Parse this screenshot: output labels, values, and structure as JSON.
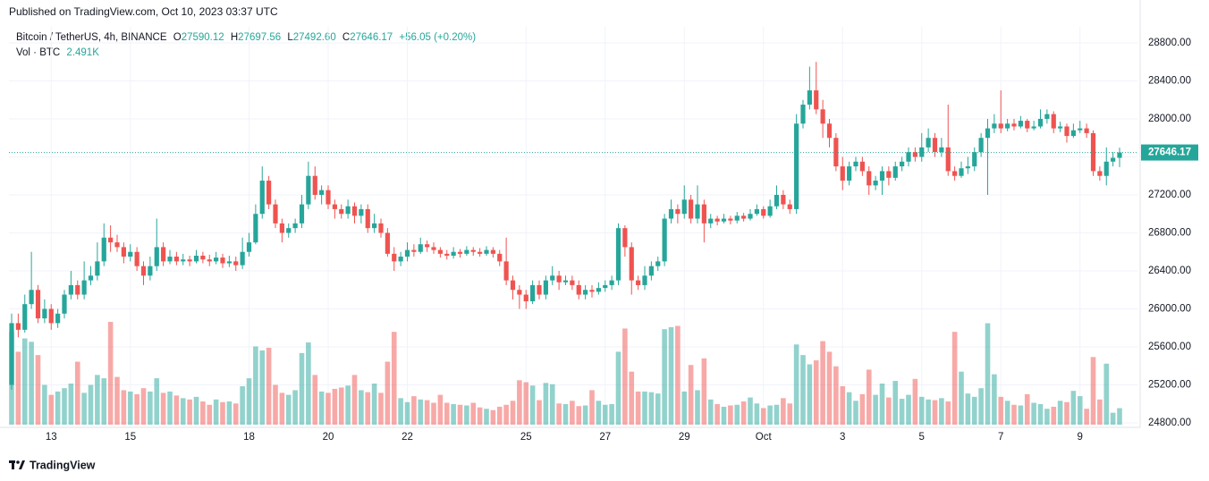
{
  "publish_note": "Published on TradingView.com, Oct 10, 2023 03:37 UTC",
  "footer": {
    "brand": "TradingView"
  },
  "chart_data": {
    "type": "candlestick",
    "title": "Bitcoin / TetherUS, 4h, BINANCE",
    "header": {
      "o": "O",
      "h": "H",
      "l": "L",
      "c": "C",
      "change": "+56.05 (+0.20%)",
      "vol": "Vol · BTC",
      "volume_last_label": "2.491K",
      "ohlc_labels": {
        "open": "27590.12",
        "high": "27697.56",
        "low": "27492.60",
        "close": "27646.17"
      }
    },
    "up_color": "#26a69a",
    "down_color": "#ef5350",
    "grid": true,
    "ylim": [
      24753,
      28969
    ],
    "y2lim": [
      0,
      60000
    ],
    "yticks": [
      {
        "value": 24800,
        "label": "24800.00"
      },
      {
        "value": 25200,
        "label": "25200.00"
      },
      {
        "value": 25600,
        "label": "25600.00"
      },
      {
        "value": 26000,
        "label": "26000.00"
      },
      {
        "value": 26400,
        "label": "26400.00"
      },
      {
        "value": 26800,
        "label": "26800.00"
      },
      {
        "value": 27200,
        "label": "27200.00"
      },
      {
        "value": 27600,
        "label": "27600.00"
      },
      {
        "value": 28000,
        "label": "28000.00"
      },
      {
        "value": 28400,
        "label": "28400.00"
      },
      {
        "value": 28800,
        "label": "28800.00"
      }
    ],
    "categories": [
      null,
      null,
      null,
      null,
      null,
      null,
      "13",
      null,
      null,
      null,
      null,
      null,
      null,
      null,
      null,
      null,
      null,
      null,
      "15",
      null,
      null,
      null,
      null,
      null,
      null,
      null,
      null,
      null,
      null,
      null,
      null,
      null,
      null,
      null,
      null,
      null,
      "18",
      null,
      null,
      null,
      null,
      null,
      null,
      null,
      null,
      null,
      null,
      null,
      "20",
      null,
      null,
      null,
      null,
      null,
      null,
      null,
      null,
      null,
      null,
      null,
      "22",
      null,
      null,
      null,
      null,
      null,
      null,
      null,
      null,
      null,
      null,
      null,
      null,
      null,
      null,
      null,
      null,
      null,
      "25",
      null,
      null,
      null,
      null,
      null,
      null,
      null,
      null,
      null,
      null,
      null,
      "27",
      null,
      null,
      null,
      null,
      null,
      null,
      null,
      null,
      null,
      null,
      null,
      "29",
      null,
      null,
      null,
      null,
      null,
      null,
      null,
      null,
      null,
      null,
      null,
      "Oct",
      null,
      null,
      null,
      null,
      null,
      null,
      null,
      null,
      null,
      null,
      null,
      "3",
      null,
      null,
      null,
      null,
      null,
      null,
      null,
      null,
      null,
      null,
      null,
      "5",
      null,
      null,
      null,
      null,
      null,
      null,
      null,
      null,
      null,
      null,
      null,
      "7",
      null,
      null,
      null,
      null,
      null,
      null,
      null,
      null,
      null,
      null,
      null,
      "9",
      null,
      null,
      null,
      null,
      null,
      null
    ],
    "open": [
      25200,
      25850,
      25780,
      26050,
      26200,
      25900,
      26000,
      25850,
      25950,
      26150,
      26250,
      26150,
      26300,
      26350,
      26500,
      26750,
      26700,
      26650,
      26550,
      26600,
      26450,
      26350,
      26450,
      26650,
      26500,
      26550,
      26500,
      26520,
      26500,
      26560,
      26520,
      26500,
      26540,
      26480,
      26500,
      26460,
      26600,
      26700,
      27000,
      27350,
      27100,
      26900,
      26800,
      26850,
      26900,
      27100,
      27400,
      27200,
      27250,
      27100,
      27050,
      27000,
      27080,
      26980,
      27050,
      26850,
      26900,
      26800,
      26580,
      26500,
      26550,
      26620,
      26600,
      26680,
      26650,
      26620,
      26580,
      26560,
      26600,
      26580,
      26620,
      26600,
      26580,
      26620,
      26580,
      26500,
      26300,
      26200,
      26150,
      26080,
      26250,
      26150,
      26300,
      26350,
      26280,
      26300,
      26250,
      26150,
      26200,
      26180,
      26220,
      26250,
      26300,
      26850,
      26650,
      26300,
      26250,
      26350,
      26450,
      26500,
      26950,
      27050,
      27000,
      27150,
      26950,
      27100,
      26900,
      26950,
      26920,
      26950,
      26930,
      26980,
      26950,
      27000,
      27050,
      26980,
      27080,
      27200,
      27100,
      27050,
      27950,
      28150,
      28300,
      28100,
      27950,
      27800,
      27500,
      27350,
      27500,
      27550,
      27450,
      27300,
      27350,
      27450,
      27380,
      27500,
      27550,
      27650,
      27600,
      27700,
      27800,
      27650,
      27700,
      27450,
      27400,
      27480,
      27500,
      27650,
      27800,
      27900,
      27950,
      27900,
      27950,
      27920,
      27980,
      27900,
      27920,
      28000,
      28050,
      27900,
      27920,
      27820,
      27880,
      27900,
      27850,
      27450,
      27400,
      27550,
      27590.12
    ],
    "high": [
      25950,
      25950,
      26150,
      26600,
      26250,
      26100,
      26050,
      26000,
      26200,
      26400,
      26300,
      26500,
      26450,
      26700,
      26900,
      26880,
      26780,
      26700,
      26680,
      26650,
      26500,
      26550,
      26950,
      26700,
      26620,
      26600,
      26580,
      26560,
      26620,
      26600,
      26570,
      26600,
      26580,
      26560,
      26550,
      26750,
      26800,
      27100,
      27500,
      27400,
      27150,
      26950,
      26900,
      26950,
      27200,
      27550,
      27500,
      27300,
      27300,
      27150,
      27100,
      27150,
      27120,
      27100,
      27100,
      27000,
      26950,
      26850,
      26650,
      26600,
      26700,
      26680,
      26750,
      26720,
      26700,
      26650,
      26620,
      26650,
      26630,
      26660,
      26650,
      26640,
      26660,
      26650,
      26620,
      26750,
      26350,
      26250,
      26200,
      26300,
      26300,
      26350,
      26450,
      26400,
      26350,
      26350,
      26300,
      26250,
      26250,
      26280,
      26300,
      26350,
      26900,
      26880,
      26700,
      26350,
      26450,
      26500,
      26550,
      27000,
      27150,
      27100,
      27300,
      27200,
      27300,
      27150,
      27000,
      26980,
      27000,
      26980,
      27020,
      27010,
      27050,
      27100,
      27080,
      27150,
      27300,
      27250,
      27150,
      28050,
      28200,
      28550,
      28600,
      28200,
      28000,
      27850,
      27600,
      27550,
      27600,
      27600,
      27500,
      27400,
      27500,
      27500,
      27550,
      27600,
      27700,
      27700,
      27850,
      27900,
      27850,
      27800,
      28150,
      27500,
      27550,
      27600,
      27700,
      27850,
      28000,
      28050,
      28300,
      28000,
      28000,
      28030,
      28000,
      27980,
      28100,
      28100,
      28080,
      27970,
      27950,
      27950,
      27980,
      27950,
      27880,
      27500,
      27700,
      27650,
      27697.56
    ],
    "low": [
      25150,
      25700,
      25750,
      26000,
      25850,
      25850,
      25780,
      25800,
      25900,
      26100,
      26100,
      26100,
      26250,
      26300,
      26450,
      26600,
      26600,
      26480,
      26500,
      26400,
      26250,
      26300,
      26400,
      26450,
      26470,
      26460,
      26460,
      26450,
      26480,
      26480,
      26450,
      26470,
      26430,
      26440,
      26400,
      26420,
      26550,
      26680,
      26950,
      27050,
      26850,
      26700,
      26750,
      26800,
      26850,
      27050,
      27150,
      27100,
      27050,
      26950,
      26950,
      26950,
      26900,
      26900,
      26800,
      26800,
      26750,
      26550,
      26400,
      26450,
      26500,
      26550,
      26580,
      26600,
      26580,
      26540,
      26520,
      26530,
      26540,
      26560,
      26560,
      26550,
      26560,
      26540,
      26450,
      26250,
      26100,
      26000,
      26000,
      26050,
      26100,
      26100,
      26250,
      26200,
      26250,
      26200,
      26100,
      26100,
      26120,
      26150,
      26180,
      26200,
      26250,
      26550,
      26150,
      26200,
      26200,
      26300,
      26400,
      26450,
      26900,
      26900,
      26950,
      26900,
      26900,
      26700,
      26850,
      26880,
      26900,
      26890,
      26900,
      26920,
      26930,
      26980,
      26950,
      26960,
      27050,
      27050,
      27000,
      27000,
      27900,
      28100,
      28050,
      27800,
      27700,
      27450,
      27250,
      27300,
      27450,
      27400,
      27200,
      27250,
      27200,
      27300,
      27350,
      27450,
      27500,
      27550,
      27550,
      27650,
      27600,
      27600,
      27400,
      27350,
      27380,
      27420,
      27450,
      27600,
      27200,
      27850,
      27850,
      27870,
      27880,
      27900,
      27860,
      27880,
      27900,
      27950,
      27850,
      27860,
      27750,
      27800,
      27850,
      27800,
      27400,
      27350,
      27300,
      27500,
      27492.6
    ],
    "close": [
      25850,
      25780,
      26050,
      26200,
      25900,
      26000,
      25850,
      25950,
      26150,
      26250,
      26150,
      26300,
      26350,
      26500,
      26750,
      26700,
      26650,
      26550,
      26600,
      26450,
      26350,
      26450,
      26650,
      26500,
      26550,
      26500,
      26520,
      26500,
      26560,
      26520,
      26500,
      26540,
      26480,
      26500,
      26460,
      26600,
      26700,
      27000,
      27350,
      27100,
      26900,
      26800,
      26850,
      26900,
      27100,
      27400,
      27200,
      27250,
      27100,
      27050,
      27000,
      27080,
      26980,
      27050,
      26850,
      26900,
      26800,
      26580,
      26500,
      26550,
      26620,
      26600,
      26680,
      26650,
      26620,
      26580,
      26560,
      26600,
      26580,
      26620,
      26600,
      26580,
      26620,
      26580,
      26500,
      26300,
      26200,
      26150,
      26080,
      26250,
      26150,
      26300,
      26350,
      26280,
      26300,
      26250,
      26150,
      26200,
      26180,
      26220,
      26250,
      26300,
      26850,
      26650,
      26300,
      26250,
      26350,
      26450,
      26500,
      26950,
      27050,
      27000,
      27150,
      26950,
      27100,
      26900,
      26950,
      26920,
      26950,
      26930,
      26980,
      26950,
      27000,
      27050,
      26980,
      27080,
      27200,
      27100,
      27050,
      27950,
      28150,
      28300,
      28100,
      27950,
      27800,
      27500,
      27350,
      27500,
      27550,
      27450,
      27300,
      27350,
      27450,
      27380,
      27500,
      27550,
      27650,
      27600,
      27700,
      27800,
      27650,
      27700,
      27450,
      27400,
      27480,
      27500,
      27650,
      27800,
      27900,
      27950,
      27900,
      27950,
      27920,
      27980,
      27900,
      27920,
      28000,
      28050,
      27900,
      27920,
      27820,
      27880,
      27900,
      27850,
      27450,
      27400,
      27550,
      27590.12,
      27646.17
    ],
    "volume": [
      14000,
      11000,
      13000,
      12500,
      10500,
      6000,
      4500,
      5000,
      5500,
      6200,
      9500,
      4800,
      6000,
      7500,
      7000,
      15500,
      7200,
      5200,
      5000,
      4600,
      5500,
      5000,
      7000,
      4800,
      5000,
      4400,
      4000,
      3800,
      4200,
      3500,
      3000,
      3800,
      3400,
      3500,
      3200,
      5800,
      7000,
      11800,
      11200,
      11600,
      6000,
      4800,
      4500,
      5200,
      10800,
      12400,
      7500,
      5000,
      4800,
      5400,
      5600,
      5900,
      7500,
      5200,
      4900,
      6200,
      4800,
      9500,
      14000,
      4000,
      3400,
      4300,
      3800,
      3700,
      3300,
      4500,
      3300,
      3100,
      3000,
      2900,
      3300,
      2600,
      2400,
      2200,
      2700,
      3000,
      3600,
      6700,
      6400,
      5900,
      3700,
      6300,
      6100,
      3200,
      3100,
      3600,
      2800,
      2900,
      5200,
      3600,
      3000,
      3100,
      11000,
      14500,
      8000,
      5000,
      5000,
      4900,
      4700,
      14400,
      14700,
      14900,
      5000,
      9000,
      5200,
      10000,
      3800,
      3100,
      2700,
      2900,
      3000,
      3500,
      4100,
      3200,
      2500,
      2900,
      3000,
      4000,
      3200,
      12100,
      10500,
      9100,
      9700,
      12600,
      11000,
      8800,
      5800,
      4900,
      3600,
      4600,
      8300,
      4500,
      6200,
      4100,
      6600,
      3900,
      4500,
      6900,
      4200,
      3800,
      3700,
      4000,
      3500,
      14000,
      8000,
      4700,
      4200,
      5500,
      15300,
      7600,
      4200,
      3600,
      3000,
      2900,
      4600,
      3300,
      3100,
      2400,
      2700,
      3600,
      3400,
      5100,
      4300,
      2400,
      10200,
      3800,
      9200,
      1800,
      2491
    ]
  }
}
